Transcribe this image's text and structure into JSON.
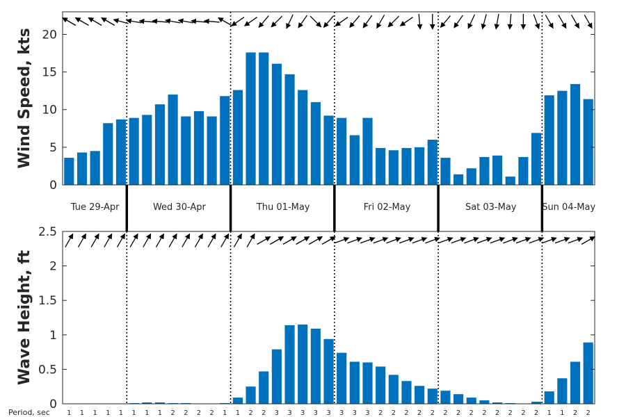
{
  "chart_data": [
    {
      "type": "bar",
      "ylabel": "Wind Speed, kts",
      "ylim": [
        0,
        23
      ],
      "yticks": [
        "0",
        "5",
        "10",
        "15",
        "20"
      ],
      "bar_color": "#0072BD",
      "values": [
        3.6,
        4.3,
        4.5,
        8.2,
        8.7,
        8.9,
        9.3,
        10.7,
        12.0,
        9.1,
        9.8,
        9.1,
        11.8,
        12.6,
        17.6,
        17.6,
        16.1,
        14.7,
        12.6,
        11.0,
        9.2,
        8.9,
        6.6,
        8.9,
        4.9,
        4.6,
        4.9,
        5.0,
        6.0,
        3.6,
        1.4,
        2.2,
        3.7,
        3.9,
        1.1,
        3.7,
        6.9,
        11.9,
        12.5,
        13.4,
        11.4
      ],
      "direction_arrows_deg": [
        150,
        150,
        150,
        150,
        165,
        170,
        175,
        175,
        170,
        170,
        175,
        175,
        150,
        215,
        215,
        230,
        225,
        245,
        235,
        315,
        230,
        215,
        230,
        235,
        240,
        225,
        215,
        275,
        270,
        230,
        235,
        245,
        255,
        260,
        265,
        270,
        290,
        300,
        300,
        300,
        300
      ]
    },
    {
      "type": "bar",
      "ylabel": "Wave Height, ft",
      "ylim": [
        0,
        2.5
      ],
      "yticks": [
        "0",
        "0.5",
        "1",
        "1.5",
        "2",
        "2.5"
      ],
      "bar_color": "#0072BD",
      "values": [
        0.0,
        0.0,
        0.0,
        0.0,
        0.0,
        0.01,
        0.02,
        0.02,
        0.01,
        0.01,
        0.0,
        0.0,
        0.01,
        0.09,
        0.25,
        0.47,
        0.79,
        1.14,
        1.15,
        1.09,
        0.94,
        0.74,
        0.61,
        0.6,
        0.54,
        0.42,
        0.33,
        0.26,
        0.22,
        0.19,
        0.14,
        0.09,
        0.05,
        0.02,
        0.01,
        0.0,
        0.03,
        0.18,
        0.37,
        0.61,
        0.89
      ],
      "direction_arrows_deg": [
        60,
        60,
        60,
        60,
        60,
        60,
        60,
        60,
        60,
        60,
        60,
        60,
        60,
        60,
        60,
        30,
        30,
        30,
        30,
        30,
        30,
        20,
        20,
        20,
        20,
        20,
        20,
        20,
        20,
        20,
        20,
        20,
        20,
        20,
        20,
        20,
        20,
        20,
        20,
        20,
        30
      ]
    }
  ],
  "days": [
    "Tue 29-Apr",
    "Wed 30-Apr",
    "Thu 01-May",
    "Fri 02-May",
    "Sat 03-May",
    "Sun 04-May"
  ],
  "periods_title": "Period, sec",
  "periods": [
    "1",
    "1",
    "1",
    "1",
    "1",
    "1",
    "1",
    "1",
    "2",
    "2",
    "2",
    "2",
    "1",
    "1",
    "2",
    "2",
    "3",
    "3",
    "3",
    "3",
    "3",
    "3",
    "3",
    "3",
    "2",
    "2",
    "2",
    "2",
    "2",
    "2",
    "2",
    "2",
    "2",
    "2",
    "2",
    "2",
    "2",
    "1",
    "1",
    "2",
    "2"
  ]
}
